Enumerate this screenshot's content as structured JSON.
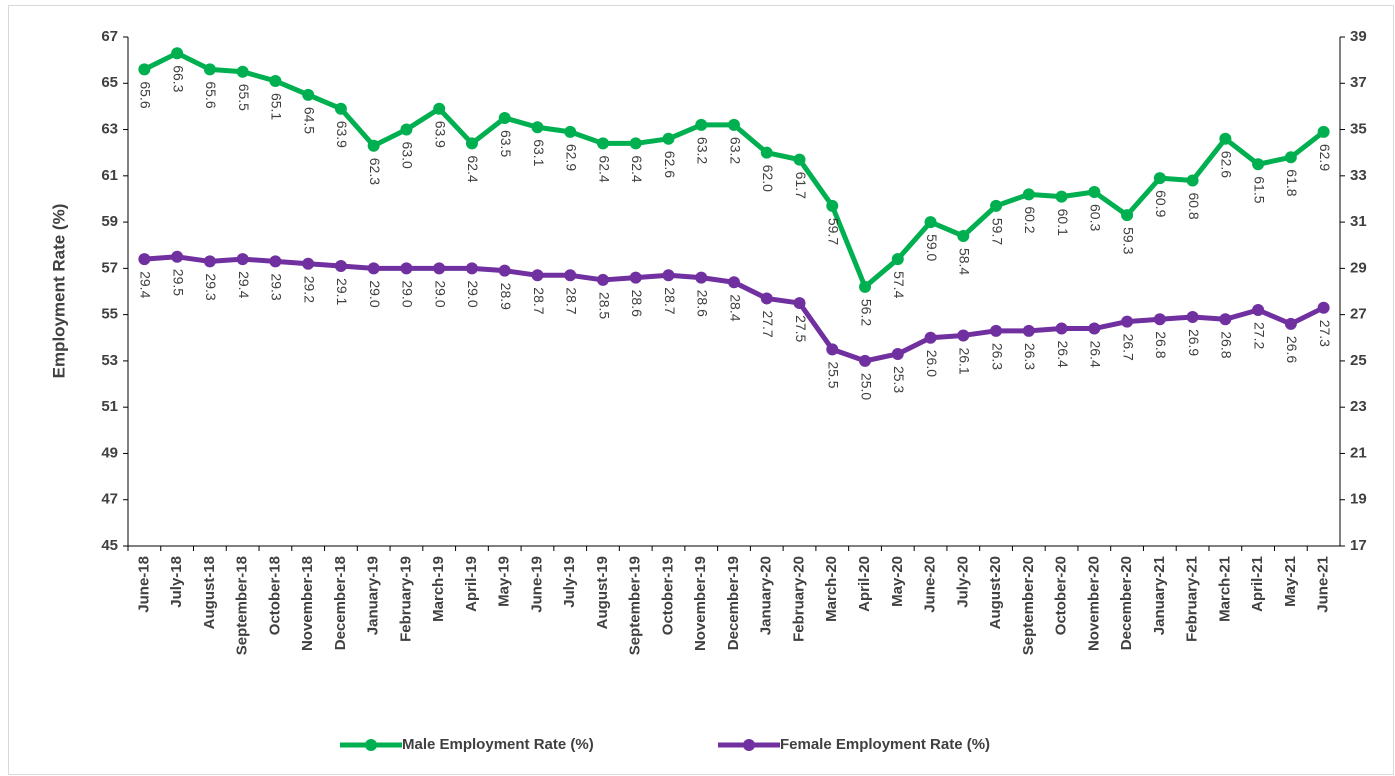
{
  "chart_data": {
    "type": "line",
    "y_label": "Employment Rate (%)",
    "categories": [
      "June-18",
      "July-18",
      "August-18",
      "September-18",
      "October-18",
      "November-18",
      "December-18",
      "January-19",
      "February-19",
      "March-19",
      "April-19",
      "May-19",
      "June-19",
      "July-19",
      "August-19",
      "September-19",
      "October-19",
      "November-19",
      "December-19",
      "January-20",
      "February-20",
      "March-20",
      "April-20",
      "May-20",
      "June-20",
      "July-20",
      "August-20",
      "September-20",
      "October-20",
      "November-20",
      "December-20",
      "January-21",
      "February-21",
      "March-21",
      "April-21",
      "May-21",
      "June-21"
    ],
    "series": [
      {
        "name": "Male Employment Rate (%)",
        "color": "#00b050",
        "axis": "y",
        "values": [
          65.6,
          66.3,
          65.6,
          65.5,
          65.1,
          64.5,
          63.9,
          62.3,
          63.0,
          63.9,
          62.4,
          63.5,
          63.1,
          62.9,
          62.4,
          62.4,
          62.6,
          63.2,
          63.2,
          62.0,
          61.7,
          59.7,
          56.2,
          57.4,
          59.0,
          58.4,
          59.7,
          60.2,
          60.1,
          60.3,
          59.3,
          60.9,
          60.8,
          62.6,
          61.5,
          61.8,
          62.9
        ],
        "value_labels": [
          "65.6",
          "66.3",
          "65.6",
          "65.5",
          "65.1",
          "64.5",
          "63.9",
          "62.3",
          "63.0",
          "63.9",
          "62.4",
          "63.5",
          "63.1",
          "62.9",
          "62.4",
          "62.4",
          "62.6",
          "63.2",
          "63.2",
          "62.0",
          "61.7",
          "59.7",
          "56.2",
          "57.4",
          "59.0",
          "58.4",
          "59.7",
          "60.2",
          "60.1",
          "60.3",
          "59.3",
          "60.9",
          "60.8",
          "62.6",
          "61.5",
          "61.8",
          "62.9"
        ]
      },
      {
        "name": "Female Employment Rate (%)",
        "color": "#7030a0",
        "axis": "y2",
        "values": [
          29.4,
          29.5,
          29.3,
          29.4,
          29.3,
          29.2,
          29.1,
          29.0,
          29.0,
          29.0,
          29.0,
          28.9,
          28.7,
          28.7,
          28.5,
          28.6,
          28.7,
          28.6,
          28.4,
          27.7,
          27.5,
          25.5,
          25.0,
          25.3,
          26.0,
          26.1,
          26.3,
          26.3,
          26.4,
          26.4,
          26.7,
          26.8,
          26.9,
          26.8,
          27.2,
          26.6,
          27.3
        ],
        "value_labels": [
          "29.4",
          "29.5",
          "29.3",
          "29.4",
          "29.3",
          "29.2",
          "29.1",
          "29.0",
          "29.0",
          "29.0",
          "29.0",
          "28.9",
          "28.7",
          "28.7",
          "28.5",
          "28.6",
          "28.7",
          "28.6",
          "28.4",
          "27.7",
          "27.5",
          "25.5",
          "25.0",
          "25.3",
          "26.0",
          "26.1",
          "26.3",
          "26.3",
          "26.4",
          "26.4",
          "26.7",
          "26.8",
          "26.9",
          "26.8",
          "27.2",
          "26.6",
          "27.3"
        ]
      }
    ],
    "ylim": [
      45,
      67
    ],
    "yticks": [
      45,
      47,
      49,
      51,
      53,
      55,
      57,
      59,
      61,
      63,
      65,
      67
    ],
    "y2lim": [
      17,
      39
    ],
    "y2ticks": [
      17,
      19,
      21,
      23,
      25,
      27,
      29,
      31,
      33,
      35,
      37,
      39
    ],
    "legend": "bottom"
  }
}
